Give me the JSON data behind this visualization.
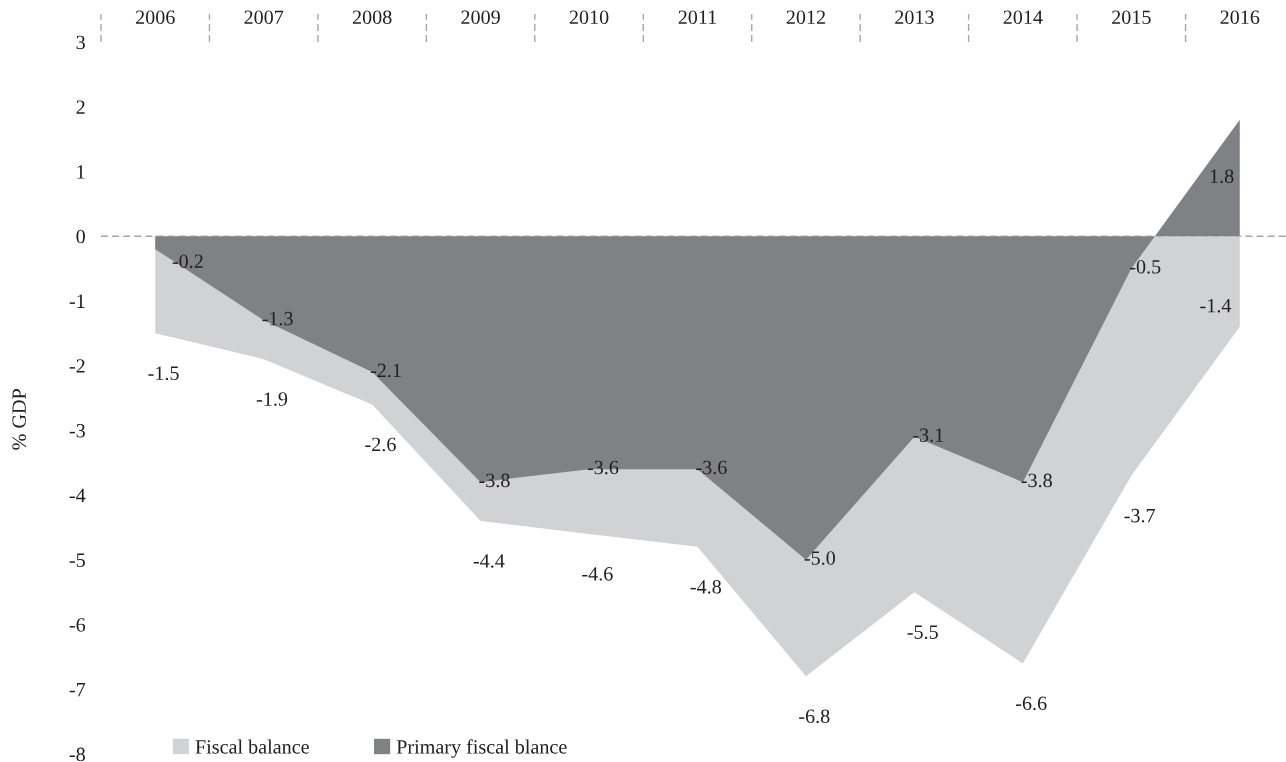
{
  "chart_data": {
    "type": "area",
    "ylabel": "% GDP",
    "categories": [
      "2006",
      "2007",
      "2008",
      "2009",
      "2010",
      "2011",
      "2012",
      "2013",
      "2014",
      "2015",
      "2016"
    ],
    "series": [
      {
        "name": "Fiscal balance",
        "color": "#d1d2d4",
        "values": [
          -1.5,
          -1.9,
          -2.6,
          -4.4,
          -4.6,
          -4.8,
          -6.8,
          -5.5,
          -6.6,
          -3.7,
          -1.4
        ],
        "value_labels": [
          "-1.5",
          "-1.9",
          "-2.6",
          "-4.4",
          "-4.6",
          "-4.8",
          "-6.8",
          "-5.5",
          "-6.6",
          "-3.7",
          "-1.4"
        ]
      },
      {
        "name": "Primary fiscal blance",
        "color": "#808184",
        "values": [
          -0.2,
          -1.3,
          -2.1,
          -3.8,
          -3.6,
          -3.6,
          -5.0,
          -3.1,
          -3.8,
          -0.5,
          1.8
        ],
        "value_labels": [
          "-0.2",
          "-1.3",
          "-2.1",
          "-3.8",
          "-3.6",
          "-3.6",
          "-5.0",
          "-3.1",
          "-3.8",
          "-0.5",
          "1.8"
        ]
      }
    ],
    "ylim": [
      -8,
      3
    ],
    "yticks": [
      -8,
      -7,
      -6,
      -5,
      -4,
      -3,
      -2,
      -1,
      0,
      1,
      2,
      3
    ],
    "grid": false,
    "legend": "bottom left",
    "ref_lines": [
      {
        "axis": "y",
        "value": 0,
        "color": "#a6a6a6",
        "line_style": "dashed"
      }
    ]
  }
}
